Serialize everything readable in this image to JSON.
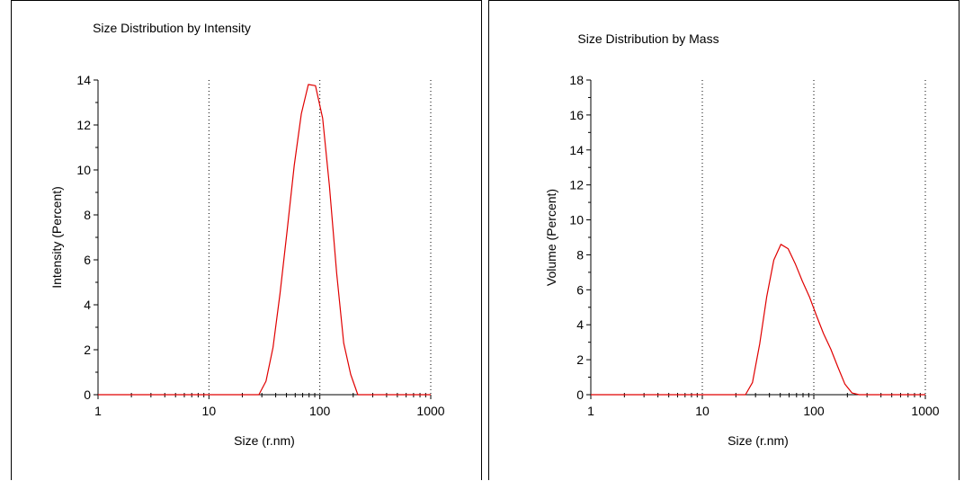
{
  "chart_data": [
    {
      "type": "line",
      "title": "Size Distribution by Intensity",
      "xlabel": "Size (r.nm)",
      "ylabel": "Intensity (Percent)",
      "xscale": "log",
      "xlim": [
        1,
        1000
      ],
      "ylim": [
        0,
        14
      ],
      "xticks": [
        1,
        10,
        100,
        1000
      ],
      "xtick_labels": [
        "1",
        "10",
        "100",
        "1000"
      ],
      "yticks": [
        0,
        2,
        4,
        6,
        8,
        10,
        12,
        14
      ],
      "ytick_labels": [
        "0",
        "2",
        "4",
        "6",
        "8",
        "10",
        "12",
        "14"
      ],
      "grid": "vertical dotted lines at decades",
      "line_color": "#e00000",
      "series": [
        {
          "x": [
            1,
            28.2,
            32.7,
            37.8,
            43.8,
            50.7,
            58.8,
            68.1,
            78.8,
            91.3,
            106,
            122,
            142,
            164,
            190,
            220,
            255,
            1000
          ],
          "values": [
            0,
            0,
            0.6,
            2.1,
            4.5,
            7.3,
            10.2,
            12.5,
            13.8,
            13.75,
            12.3,
            9.3,
            5.4,
            2.3,
            0.9,
            0,
            0,
            0
          ]
        }
      ]
    },
    {
      "type": "line",
      "title": "Size Distribution by Mass",
      "xlabel": "Size (r.nm)",
      "ylabel": "Volume (Percent)",
      "xscale": "log",
      "xlim": [
        1,
        1000
      ],
      "ylim": [
        0,
        18
      ],
      "xticks": [
        1,
        10,
        100,
        1000
      ],
      "xtick_labels": [
        "1",
        "10",
        "100",
        "1000"
      ],
      "yticks": [
        0,
        2,
        4,
        6,
        8,
        10,
        12,
        14,
        16,
        18
      ],
      "ytick_labels": [
        "0",
        "2",
        "4",
        "6",
        "8",
        "10",
        "12",
        "14",
        "16",
        "18"
      ],
      "grid": "vertical dotted lines at decades",
      "line_color": "#e00000",
      "series": [
        {
          "x": [
            1,
            24.4,
            28.2,
            32.7,
            37.8,
            43.8,
            50.7,
            58.8,
            68.1,
            78.8,
            91.3,
            106,
            122,
            142,
            164,
            190,
            220,
            255,
            1000
          ],
          "values": [
            0,
            0,
            0.7,
            2.9,
            5.6,
            7.7,
            8.6,
            8.35,
            7.5,
            6.5,
            5.6,
            4.5,
            3.5,
            2.6,
            1.6,
            0.6,
            0.1,
            0,
            0
          ]
        }
      ]
    }
  ]
}
